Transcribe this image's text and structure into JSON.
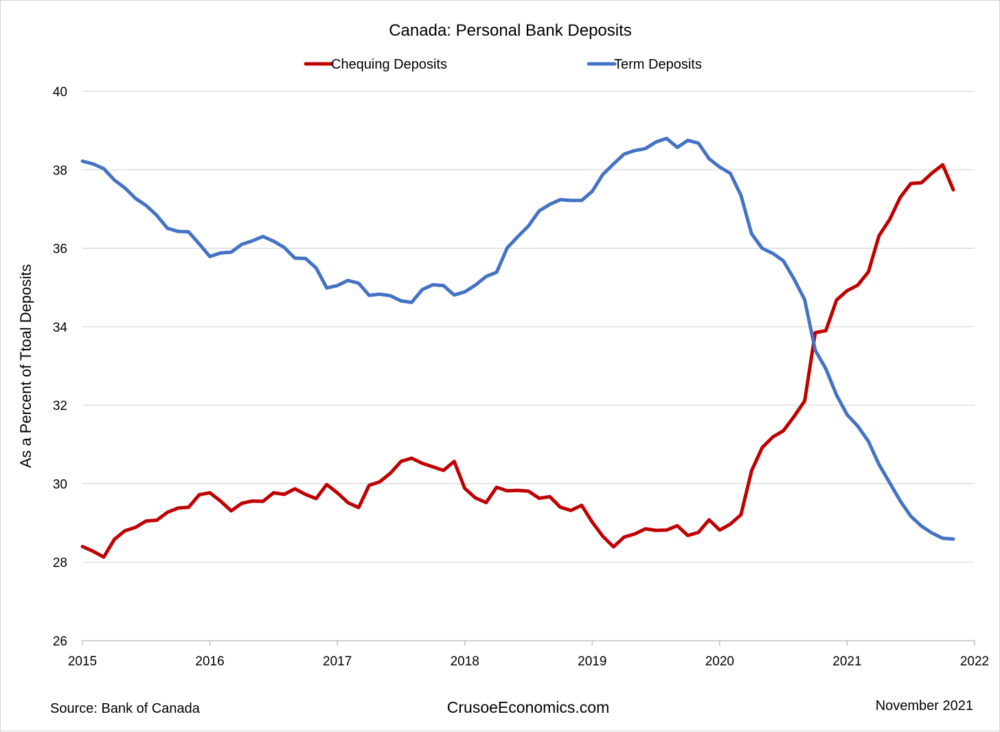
{
  "chart_data": {
    "type": "line",
    "title": "Canada: Personal Bank Deposits",
    "ylabel": "As a Percent of Ttoal Deposits",
    "xlabel": "",
    "xlim": [
      2015,
      2022
    ],
    "ylim": [
      26,
      40
    ],
    "x_ticks": [
      "2015",
      "2016",
      "2017",
      "2018",
      "2019",
      "2020",
      "2021",
      "2022"
    ],
    "y_ticks": [
      "26",
      "28",
      "30",
      "32",
      "34",
      "36",
      "38",
      "40"
    ],
    "grid": "horizontal",
    "legend_position": "top",
    "x": [
      2015.0,
      2015.083,
      2015.167,
      2015.25,
      2015.333,
      2015.417,
      2015.5,
      2015.583,
      2015.667,
      2015.75,
      2015.833,
      2015.917,
      2016.0,
      2016.083,
      2016.167,
      2016.25,
      2016.333,
      2016.417,
      2016.5,
      2016.583,
      2016.667,
      2016.75,
      2016.833,
      2016.917,
      2017.0,
      2017.083,
      2017.167,
      2017.25,
      2017.333,
      2017.417,
      2017.5,
      2017.583,
      2017.667,
      2017.75,
      2017.833,
      2017.917,
      2018.0,
      2018.083,
      2018.167,
      2018.25,
      2018.333,
      2018.417,
      2018.5,
      2018.583,
      2018.667,
      2018.75,
      2018.833,
      2018.917,
      2019.0,
      2019.083,
      2019.167,
      2019.25,
      2019.333,
      2019.417,
      2019.5,
      2019.583,
      2019.667,
      2019.75,
      2019.833,
      2019.917,
      2020.0,
      2020.083,
      2020.167,
      2020.25,
      2020.333,
      2020.417,
      2020.5,
      2020.583,
      2020.667,
      2020.75,
      2020.833,
      2020.917,
      2021.0,
      2021.083,
      2021.167,
      2021.25,
      2021.333,
      2021.417,
      2021.5,
      2021.583,
      2021.667,
      2021.75,
      2021.833
    ],
    "series": [
      {
        "name": "Chequing Deposits",
        "color": "#c00000",
        "values": [
          28.4,
          28.28,
          28.13,
          28.58,
          28.8,
          28.89,
          29.05,
          29.07,
          29.27,
          29.38,
          29.4,
          29.72,
          29.77,
          29.56,
          29.31,
          29.5,
          29.56,
          29.55,
          29.77,
          29.73,
          29.87,
          29.73,
          29.62,
          29.98,
          29.77,
          29.52,
          29.39,
          29.96,
          30.05,
          30.27,
          30.57,
          30.65,
          30.52,
          30.43,
          30.34,
          30.57,
          29.88,
          29.64,
          29.52,
          29.91,
          29.82,
          29.83,
          29.81,
          29.63,
          29.67,
          29.4,
          29.32,
          29.45,
          29.02,
          28.66,
          28.39,
          28.64,
          28.72,
          28.85,
          28.81,
          28.82,
          28.93,
          28.68,
          28.76,
          29.08,
          28.82,
          28.97,
          29.21,
          30.33,
          30.92,
          31.19,
          31.35,
          31.71,
          32.11,
          33.85,
          33.9,
          34.68,
          34.92,
          35.06,
          35.4,
          36.32,
          36.73,
          37.3,
          37.65,
          37.67,
          37.92,
          38.13,
          37.49
        ]
      },
      {
        "name": "Term Deposits",
        "color": "#4472c4",
        "values": [
          38.22,
          38.15,
          38.03,
          37.74,
          37.54,
          37.27,
          37.09,
          36.84,
          36.51,
          36.43,
          36.42,
          36.11,
          35.79,
          35.88,
          35.9,
          36.1,
          36.19,
          36.3,
          36.18,
          36.02,
          35.75,
          35.74,
          35.5,
          34.99,
          35.05,
          35.18,
          35.11,
          34.8,
          34.83,
          34.79,
          34.66,
          34.62,
          34.95,
          35.07,
          35.05,
          34.81,
          34.89,
          35.06,
          35.28,
          35.39,
          36.01,
          36.3,
          36.57,
          36.95,
          37.12,
          37.24,
          37.22,
          37.22,
          37.45,
          37.88,
          38.15,
          38.4,
          38.49,
          38.54,
          38.71,
          38.8,
          38.57,
          38.75,
          38.68,
          38.28,
          38.07,
          37.91,
          37.35,
          36.37,
          36.0,
          35.87,
          35.68,
          35.22,
          34.69,
          33.4,
          32.93,
          32.26,
          31.76,
          31.47,
          31.08,
          30.49,
          30.03,
          29.56,
          29.17,
          28.92,
          28.74,
          28.61,
          28.59
        ]
      }
    ]
  },
  "footer": {
    "source": "Source:  Bank of Canada",
    "site": "CrusoeEconomics.com",
    "date": "November 2021"
  }
}
